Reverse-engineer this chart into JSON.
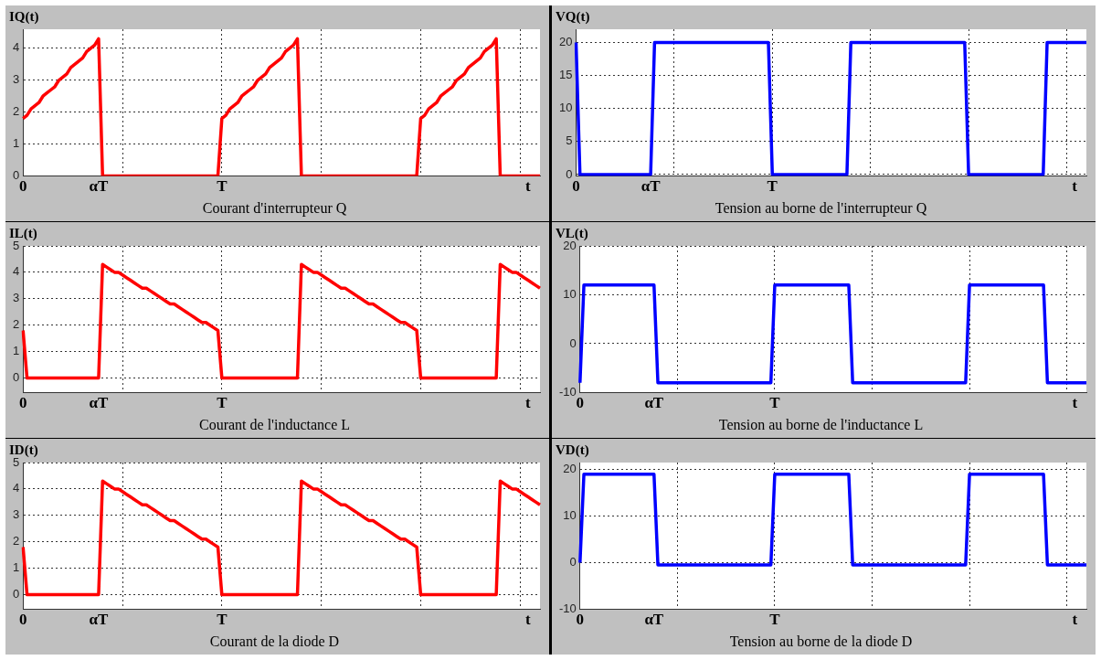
{
  "chart_data": [
    {
      "type": "line",
      "ylabel": "IQ(t)",
      "title": "Courant d'interrupteur Q",
      "categories": [
        "0",
        null,
        null,
        null,
        null,
        null,
        null,
        null,
        null,
        null,
        null,
        null,
        null,
        null,
        null,
        null,
        null,
        null,
        null,
        "αT",
        null,
        null,
        null,
        null,
        null,
        null,
        null,
        null,
        null,
        null,
        null,
        null,
        null,
        null,
        null,
        null,
        null,
        null,
        null,
        null,
        null,
        null,
        null,
        null,
        null,
        null,
        null,
        null,
        null,
        null,
        "T",
        null,
        null,
        null,
        null,
        null,
        null,
        null,
        null,
        null,
        null,
        null,
        null,
        null,
        null,
        null,
        null,
        null,
        null,
        null,
        null,
        null,
        null,
        null,
        null,
        null,
        null,
        null,
        null,
        null,
        null,
        null,
        null,
        null,
        null,
        null,
        null,
        null,
        null,
        null,
        null,
        null,
        null,
        null,
        null,
        null,
        null,
        null,
        null,
        null,
        null,
        null,
        null,
        null,
        null,
        null,
        null,
        null,
        null,
        null,
        null,
        null,
        null,
        null,
        null,
        null,
        null,
        null,
        null,
        null,
        null,
        null,
        null,
        null,
        null,
        null,
        null,
        "t",
        null,
        null,
        null
      ],
      "series": [
        {
          "color": "#ff0000",
          "values": [
            1.8,
            1.9,
            2.1,
            2.2,
            2.3,
            2.5,
            2.6,
            2.7,
            2.8,
            3.0,
            3.1,
            3.2,
            3.4,
            3.5,
            3.6,
            3.7,
            3.9,
            4.0,
            4.1,
            4.3,
            0,
            0,
            0,
            0,
            0,
            0,
            0,
            0,
            0,
            0,
            0,
            0,
            0,
            0,
            0,
            0,
            0,
            0,
            0,
            0,
            0,
            0,
            0,
            0,
            0,
            0,
            0,
            0,
            0,
            0,
            1.8,
            1.9,
            2.1,
            2.2,
            2.3,
            2.5,
            2.6,
            2.7,
            2.8,
            3.0,
            3.1,
            3.2,
            3.4,
            3.5,
            3.6,
            3.7,
            3.9,
            4.0,
            4.1,
            4.3,
            0,
            0,
            0,
            0,
            0,
            0,
            0,
            0,
            0,
            0,
            0,
            0,
            0,
            0,
            0,
            0,
            0,
            0,
            0,
            0,
            0,
            0,
            0,
            0,
            0,
            0,
            0,
            0,
            0,
            0,
            1.8,
            1.9,
            2.1,
            2.2,
            2.3,
            2.5,
            2.6,
            2.7,
            2.8,
            3.0,
            3.1,
            3.2,
            3.4,
            3.5,
            3.6,
            3.7,
            3.9,
            4.0,
            4.1,
            4.3,
            0,
            0,
            0,
            0,
            0,
            0,
            0,
            0,
            0,
            0,
            0
          ]
        }
      ],
      "ylim": [
        0,
        4.6
      ],
      "yticks": [
        0,
        1,
        2,
        3,
        4
      ],
      "grid": true,
      "marker": "none",
      "line_style": "solid"
    },
    {
      "type": "line",
      "ylabel": "VQ(t)",
      "title": "Tension au borne de l'interrupteur Q",
      "categories": [
        "0",
        null,
        null,
        null,
        null,
        null,
        null,
        null,
        null,
        null,
        null,
        null,
        null,
        null,
        null,
        null,
        null,
        null,
        null,
        "αT",
        null,
        null,
        null,
        null,
        null,
        null,
        null,
        null,
        null,
        null,
        null,
        null,
        null,
        null,
        null,
        null,
        null,
        null,
        null,
        null,
        null,
        null,
        null,
        null,
        null,
        null,
        null,
        null,
        null,
        null,
        "T",
        null,
        null,
        null,
        null,
        null,
        null,
        null,
        null,
        null,
        null,
        null,
        null,
        null,
        null,
        null,
        null,
        null,
        null,
        null,
        null,
        null,
        null,
        null,
        null,
        null,
        null,
        null,
        null,
        null,
        null,
        null,
        null,
        null,
        null,
        null,
        null,
        null,
        null,
        null,
        null,
        null,
        null,
        null,
        null,
        null,
        null,
        null,
        null,
        null,
        null,
        null,
        null,
        null,
        null,
        null,
        null,
        null,
        null,
        null,
        null,
        null,
        null,
        null,
        null,
        null,
        null,
        null,
        null,
        null,
        null,
        null,
        null,
        null,
        null,
        null,
        null,
        "t",
        null,
        null,
        null
      ],
      "series": [
        {
          "color": "#0000ff",
          "values": [
            20,
            0,
            0,
            0,
            0,
            0,
            0,
            0,
            0,
            0,
            0,
            0,
            0,
            0,
            0,
            0,
            0,
            0,
            0,
            0,
            20,
            20,
            20,
            20,
            20,
            20,
            20,
            20,
            20,
            20,
            20,
            20,
            20,
            20,
            20,
            20,
            20,
            20,
            20,
            20,
            20,
            20,
            20,
            20,
            20,
            20,
            20,
            20,
            20,
            20,
            0,
            0,
            0,
            0,
            0,
            0,
            0,
            0,
            0,
            0,
            0,
            0,
            0,
            0,
            0,
            0,
            0,
            0,
            0,
            0,
            20,
            20,
            20,
            20,
            20,
            20,
            20,
            20,
            20,
            20,
            20,
            20,
            20,
            20,
            20,
            20,
            20,
            20,
            20,
            20,
            20,
            20,
            20,
            20,
            20,
            20,
            20,
            20,
            20,
            20,
            0,
            0,
            0,
            0,
            0,
            0,
            0,
            0,
            0,
            0,
            0,
            0,
            0,
            0,
            0,
            0,
            0,
            0,
            0,
            0,
            20,
            20,
            20,
            20,
            20,
            20,
            20,
            20,
            20,
            20,
            20
          ]
        }
      ],
      "ylim": [
        -0.2,
        22
      ],
      "yticks": [
        0,
        5,
        10,
        15,
        20
      ],
      "grid": true,
      "marker": "none",
      "line_style": "solid"
    },
    {
      "type": "line",
      "ylabel": "IL(t)",
      "title": "Courant de l'inductance L",
      "categories": [
        "0",
        null,
        null,
        null,
        null,
        null,
        null,
        null,
        null,
        null,
        null,
        null,
        null,
        null,
        null,
        null,
        null,
        null,
        null,
        "αT",
        null,
        null,
        null,
        null,
        null,
        null,
        null,
        null,
        null,
        null,
        null,
        null,
        null,
        null,
        null,
        null,
        null,
        null,
        null,
        null,
        null,
        null,
        null,
        null,
        null,
        null,
        null,
        null,
        null,
        null,
        "T",
        null,
        null,
        null,
        null,
        null,
        null,
        null,
        null,
        null,
        null,
        null,
        null,
        null,
        null,
        null,
        null,
        null,
        null,
        null,
        null,
        null,
        null,
        null,
        null,
        null,
        null,
        null,
        null,
        null,
        null,
        null,
        null,
        null,
        null,
        null,
        null,
        null,
        null,
        null,
        null,
        null,
        null,
        null,
        null,
        null,
        null,
        null,
        null,
        null,
        null,
        null,
        null,
        null,
        null,
        null,
        null,
        null,
        null,
        null,
        null,
        null,
        null,
        null,
        null,
        null,
        null,
        null,
        null,
        null,
        null,
        null,
        null,
        null,
        null,
        null,
        null,
        "t",
        null,
        null,
        null
      ],
      "series": [
        {
          "color": "#ff0000",
          "values": [
            1.8,
            0,
            0,
            0,
            0,
            0,
            0,
            0,
            0,
            0,
            0,
            0,
            0,
            0,
            0,
            0,
            0,
            0,
            0,
            0,
            4.3,
            4.2,
            4.1,
            4.0,
            4.0,
            3.9,
            3.8,
            3.7,
            3.6,
            3.5,
            3.4,
            3.4,
            3.3,
            3.2,
            3.1,
            3.0,
            2.9,
            2.8,
            2.8,
            2.7,
            2.6,
            2.5,
            2.4,
            2.3,
            2.2,
            2.1,
            2.1,
            2.0,
            1.9,
            1.8,
            0,
            0,
            0,
            0,
            0,
            0,
            0,
            0,
            0,
            0,
            0,
            0,
            0,
            0,
            0,
            0,
            0,
            0,
            0,
            0,
            4.3,
            4.2,
            4.1,
            4.0,
            4.0,
            3.9,
            3.8,
            3.7,
            3.6,
            3.5,
            3.4,
            3.4,
            3.3,
            3.2,
            3.1,
            3.0,
            2.9,
            2.8,
            2.8,
            2.7,
            2.6,
            2.5,
            2.4,
            2.3,
            2.2,
            2.1,
            2.1,
            2.0,
            1.9,
            1.8,
            0,
            0,
            0,
            0,
            0,
            0,
            0,
            0,
            0,
            0,
            0,
            0,
            0,
            0,
            0,
            0,
            0,
            0,
            0,
            0,
            4.3,
            4.2,
            4.1,
            4.0,
            4.0,
            3.9,
            3.8,
            3.7,
            3.6,
            3.5,
            3.4
          ]
        }
      ],
      "ylim": [
        -0.55,
        5
      ],
      "yticks": [
        0,
        1,
        2,
        3,
        4,
        5
      ],
      "grid": true,
      "marker": "none",
      "line_style": "solid"
    },
    {
      "type": "line",
      "ylabel": "VL(t)",
      "title": "Tension au borne de l'inductance L",
      "categories": [
        "0",
        null,
        null,
        null,
        null,
        null,
        null,
        null,
        null,
        null,
        null,
        null,
        null,
        null,
        null,
        null,
        null,
        null,
        null,
        "αT",
        null,
        null,
        null,
        null,
        null,
        null,
        null,
        null,
        null,
        null,
        null,
        null,
        null,
        null,
        null,
        null,
        null,
        null,
        null,
        null,
        null,
        null,
        null,
        null,
        null,
        null,
        null,
        null,
        null,
        null,
        "T",
        null,
        null,
        null,
        null,
        null,
        null,
        null,
        null,
        null,
        null,
        null,
        null,
        null,
        null,
        null,
        null,
        null,
        null,
        null,
        null,
        null,
        null,
        null,
        null,
        null,
        null,
        null,
        null,
        null,
        null,
        null,
        null,
        null,
        null,
        null,
        null,
        null,
        null,
        null,
        null,
        null,
        null,
        null,
        null,
        null,
        null,
        null,
        null,
        null,
        null,
        null,
        null,
        null,
        null,
        null,
        null,
        null,
        null,
        null,
        null,
        null,
        null,
        null,
        null,
        null,
        null,
        null,
        null,
        null,
        null,
        null,
        null,
        null,
        null,
        null,
        null,
        "t",
        null,
        null,
        null
      ],
      "series": [
        {
          "color": "#0000ff",
          "values": [
            -8,
            12,
            12,
            12,
            12,
            12,
            12,
            12,
            12,
            12,
            12,
            12,
            12,
            12,
            12,
            12,
            12,
            12,
            12,
            12,
            -8,
            -8,
            -8,
            -8,
            -8,
            -8,
            -8,
            -8,
            -8,
            -8,
            -8,
            -8,
            -8,
            -8,
            -8,
            -8,
            -8,
            -8,
            -8,
            -8,
            -8,
            -8,
            -8,
            -8,
            -8,
            -8,
            -8,
            -8,
            -8,
            -8,
            12,
            12,
            12,
            12,
            12,
            12,
            12,
            12,
            12,
            12,
            12,
            12,
            12,
            12,
            12,
            12,
            12,
            12,
            12,
            12,
            -8,
            -8,
            -8,
            -8,
            -8,
            -8,
            -8,
            -8,
            -8,
            -8,
            -8,
            -8,
            -8,
            -8,
            -8,
            -8,
            -8,
            -8,
            -8,
            -8,
            -8,
            -8,
            -8,
            -8,
            -8,
            -8,
            -8,
            -8,
            -8,
            -8,
            12,
            12,
            12,
            12,
            12,
            12,
            12,
            12,
            12,
            12,
            12,
            12,
            12,
            12,
            12,
            12,
            12,
            12,
            12,
            12,
            -8,
            -8,
            -8,
            -8,
            -8,
            -8,
            -8,
            -8,
            -8,
            -8,
            -8
          ]
        }
      ],
      "ylim": [
        -10,
        20
      ],
      "yticks": [
        -10,
        0,
        10,
        20
      ],
      "grid": true,
      "marker": "none",
      "line_style": "solid"
    },
    {
      "type": "line",
      "ylabel": "ID(t)",
      "title": "Courant de la diode D",
      "categories": [
        "0",
        null,
        null,
        null,
        null,
        null,
        null,
        null,
        null,
        null,
        null,
        null,
        null,
        null,
        null,
        null,
        null,
        null,
        null,
        "αT",
        null,
        null,
        null,
        null,
        null,
        null,
        null,
        null,
        null,
        null,
        null,
        null,
        null,
        null,
        null,
        null,
        null,
        null,
        null,
        null,
        null,
        null,
        null,
        null,
        null,
        null,
        null,
        null,
        null,
        null,
        "T",
        null,
        null,
        null,
        null,
        null,
        null,
        null,
        null,
        null,
        null,
        null,
        null,
        null,
        null,
        null,
        null,
        null,
        null,
        null,
        null,
        null,
        null,
        null,
        null,
        null,
        null,
        null,
        null,
        null,
        null,
        null,
        null,
        null,
        null,
        null,
        null,
        null,
        null,
        null,
        null,
        null,
        null,
        null,
        null,
        null,
        null,
        null,
        null,
        null,
        null,
        null,
        null,
        null,
        null,
        null,
        null,
        null,
        null,
        null,
        null,
        null,
        null,
        null,
        null,
        null,
        null,
        null,
        null,
        null,
        null,
        null,
        null,
        null,
        null,
        null,
        null,
        "t",
        null,
        null,
        null
      ],
      "series": [
        {
          "color": "#ff0000",
          "values": [
            1.8,
            0,
            0,
            0,
            0,
            0,
            0,
            0,
            0,
            0,
            0,
            0,
            0,
            0,
            0,
            0,
            0,
            0,
            0,
            0,
            4.3,
            4.2,
            4.1,
            4.0,
            4.0,
            3.9,
            3.8,
            3.7,
            3.6,
            3.5,
            3.4,
            3.4,
            3.3,
            3.2,
            3.1,
            3.0,
            2.9,
            2.8,
            2.8,
            2.7,
            2.6,
            2.5,
            2.4,
            2.3,
            2.2,
            2.1,
            2.1,
            2.0,
            1.9,
            1.8,
            0,
            0,
            0,
            0,
            0,
            0,
            0,
            0,
            0,
            0,
            0,
            0,
            0,
            0,
            0,
            0,
            0,
            0,
            0,
            0,
            4.3,
            4.2,
            4.1,
            4.0,
            4.0,
            3.9,
            3.8,
            3.7,
            3.6,
            3.5,
            3.4,
            3.4,
            3.3,
            3.2,
            3.1,
            3.0,
            2.9,
            2.8,
            2.8,
            2.7,
            2.6,
            2.5,
            2.4,
            2.3,
            2.2,
            2.1,
            2.1,
            2.0,
            1.9,
            1.8,
            0,
            0,
            0,
            0,
            0,
            0,
            0,
            0,
            0,
            0,
            0,
            0,
            0,
            0,
            0,
            0,
            0,
            0,
            0,
            0,
            4.3,
            4.2,
            4.1,
            4.0,
            4.0,
            3.9,
            3.8,
            3.7,
            3.6,
            3.5,
            3.4
          ]
        }
      ],
      "ylim": [
        -0.55,
        5
      ],
      "yticks": [
        0,
        1,
        2,
        3,
        4,
        5
      ],
      "grid": true,
      "marker": "none",
      "line_style": "solid"
    },
    {
      "type": "line",
      "ylabel": "VD(t)",
      "title": "Tension au borne de la diode D",
      "categories": [
        "0",
        null,
        null,
        null,
        null,
        null,
        null,
        null,
        null,
        null,
        null,
        null,
        null,
        null,
        null,
        null,
        null,
        null,
        null,
        "αT",
        null,
        null,
        null,
        null,
        null,
        null,
        null,
        null,
        null,
        null,
        null,
        null,
        null,
        null,
        null,
        null,
        null,
        null,
        null,
        null,
        null,
        null,
        null,
        null,
        null,
        null,
        null,
        null,
        null,
        null,
        "T",
        null,
        null,
        null,
        null,
        null,
        null,
        null,
        null,
        null,
        null,
        null,
        null,
        null,
        null,
        null,
        null,
        null,
        null,
        null,
        null,
        null,
        null,
        null,
        null,
        null,
        null,
        null,
        null,
        null,
        null,
        null,
        null,
        null,
        null,
        null,
        null,
        null,
        null,
        null,
        null,
        null,
        null,
        null,
        null,
        null,
        null,
        null,
        null,
        null,
        null,
        null,
        null,
        null,
        null,
        null,
        null,
        null,
        null,
        null,
        null,
        null,
        null,
        null,
        null,
        null,
        null,
        null,
        null,
        null,
        null,
        null,
        null,
        null,
        null,
        null,
        null,
        "t",
        null,
        null,
        null
      ],
      "series": [
        {
          "color": "#0000ff",
          "values": [
            0,
            19,
            19,
            19,
            19,
            19,
            19,
            19,
            19,
            19,
            19,
            19,
            19,
            19,
            19,
            19,
            19,
            19,
            19,
            19,
            -0.5,
            -0.5,
            -0.5,
            -0.5,
            -0.5,
            -0.5,
            -0.5,
            -0.5,
            -0.5,
            -0.5,
            -0.5,
            -0.5,
            -0.5,
            -0.5,
            -0.5,
            -0.5,
            -0.5,
            -0.5,
            -0.5,
            -0.5,
            -0.5,
            -0.5,
            -0.5,
            -0.5,
            -0.5,
            -0.5,
            -0.5,
            -0.5,
            -0.5,
            -0.5,
            19,
            19,
            19,
            19,
            19,
            19,
            19,
            19,
            19,
            19,
            19,
            19,
            19,
            19,
            19,
            19,
            19,
            19,
            19,
            19,
            -0.5,
            -0.5,
            -0.5,
            -0.5,
            -0.5,
            -0.5,
            -0.5,
            -0.5,
            -0.5,
            -0.5,
            -0.5,
            -0.5,
            -0.5,
            -0.5,
            -0.5,
            -0.5,
            -0.5,
            -0.5,
            -0.5,
            -0.5,
            -0.5,
            -0.5,
            -0.5,
            -0.5,
            -0.5,
            -0.5,
            -0.5,
            -0.5,
            -0.5,
            -0.5,
            19,
            19,
            19,
            19,
            19,
            19,
            19,
            19,
            19,
            19,
            19,
            19,
            19,
            19,
            19,
            19,
            19,
            19,
            19,
            19,
            -0.5,
            -0.5,
            -0.5,
            -0.5,
            -0.5,
            -0.5,
            -0.5,
            -0.5,
            -0.5,
            -0.5,
            -0.5
          ]
        }
      ],
      "ylim": [
        -10,
        21.5
      ],
      "yticks": [
        -10,
        0,
        10,
        20
      ],
      "grid": true,
      "marker": "none",
      "line_style": "solid"
    }
  ]
}
